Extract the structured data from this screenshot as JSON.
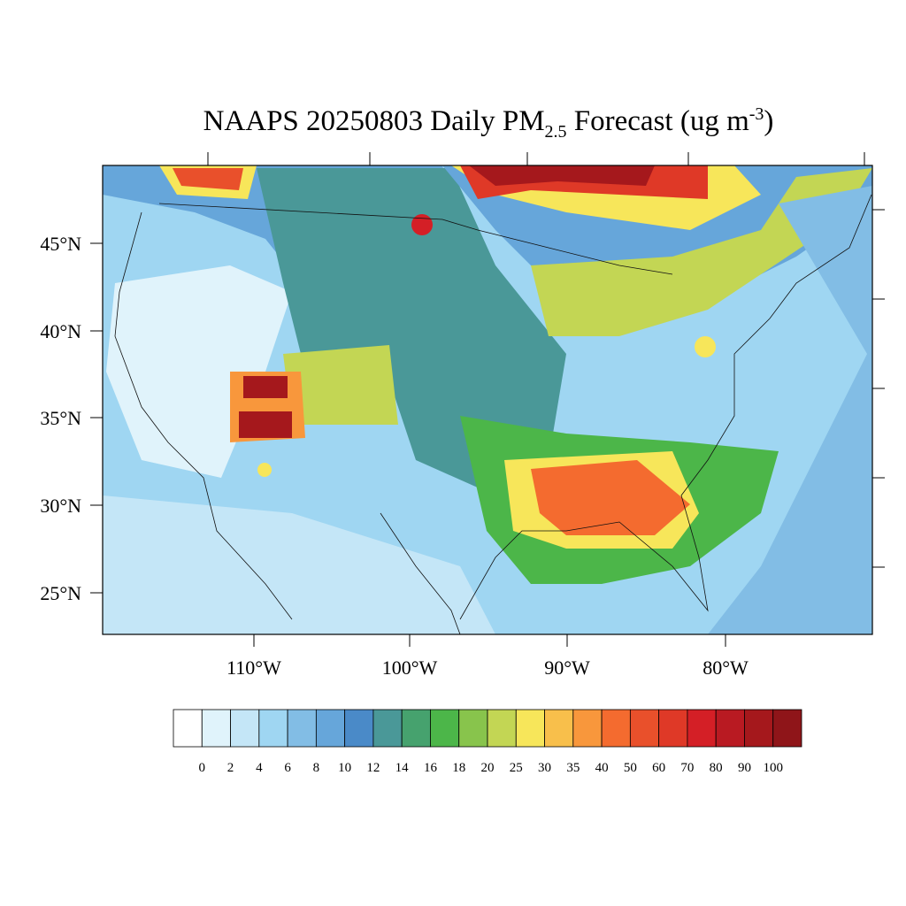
{
  "map": {
    "title": {
      "main": "NAAPS 20250803 Daily PM",
      "subscript": "2.5",
      "rest": " Forecast (ug m",
      "superscript": "-3",
      "close": ")"
    },
    "lat_labels": [
      "45°N",
      "40°N",
      "35°N",
      "30°N",
      "25°N"
    ],
    "lon_labels": [
      "110°W",
      "100°W",
      "90°W",
      "80°W"
    ],
    "colorbar": {
      "levels": [
        0,
        2,
        4,
        6,
        8,
        10,
        12,
        14,
        16,
        18,
        20,
        25,
        30,
        35,
        40,
        50,
        60,
        70,
        80,
        90,
        100
      ],
      "colors": [
        "#ffffff",
        "#e0f3fb",
        "#c4e6f7",
        "#9fd6f2",
        "#82bde5",
        "#66a6da",
        "#4a8ac8",
        "#4a9898",
        "#46a26e",
        "#4cb649",
        "#88c44c",
        "#c3d654",
        "#f7e65a",
        "#f8bf4b",
        "#f8973c",
        "#f46b2f",
        "#e9502b",
        "#df3927",
        "#d41f26",
        "#b91a22",
        "#a5181c",
        "#8f1519"
      ]
    }
  }
}
